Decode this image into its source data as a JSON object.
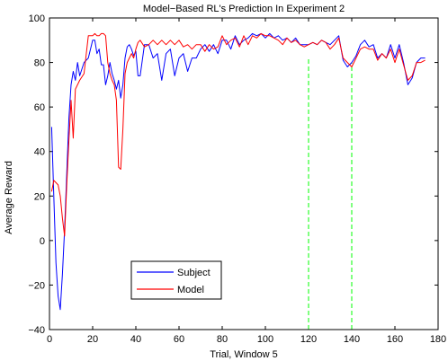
{
  "chart_data": {
    "type": "line",
    "title": "Model−Based RL's Prediction In Experiment 2",
    "xlabel": "Trial, Window 5",
    "ylabel": "Average Reward",
    "xlim": [
      0,
      180
    ],
    "ylim": [
      -40,
      100
    ],
    "xticks": [
      0,
      20,
      40,
      60,
      80,
      100,
      120,
      140,
      160,
      180
    ],
    "yticks": [
      -40,
      -20,
      0,
      20,
      40,
      60,
      80,
      100
    ],
    "xtick_labels": [
      "0",
      "20",
      "40",
      "60",
      "80",
      "100",
      "120",
      "140",
      "160",
      "180"
    ],
    "ytick_labels": [
      "−40",
      "−20",
      "0",
      "20",
      "40",
      "60",
      "80",
      "100"
    ],
    "grid": false,
    "legend_position": "bottom-left",
    "series": [
      {
        "name": "Subject",
        "color": "#0000ff",
        "x": [
          1,
          2,
          3,
          4,
          5,
          6,
          7,
          8,
          9,
          10,
          11,
          12,
          13,
          14,
          16,
          18,
          20,
          21,
          22,
          23,
          24,
          25,
          26,
          27,
          28,
          29,
          30,
          31,
          32,
          33,
          34,
          35,
          36,
          37,
          38,
          39,
          40,
          41,
          42,
          44,
          46,
          48,
          50,
          52,
          54,
          56,
          58,
          60,
          62,
          64,
          66,
          68,
          70,
          72,
          74,
          76,
          78,
          80,
          82,
          84,
          86,
          88,
          90,
          92,
          94,
          96,
          98,
          100,
          102,
          104,
          106,
          108,
          110,
          112,
          114,
          116,
          118,
          120,
          122,
          124,
          126,
          128,
          130,
          132,
          134,
          136,
          138,
          140,
          142,
          144,
          146,
          148,
          150,
          152,
          154,
          156,
          158,
          160,
          162,
          164,
          166,
          168,
          170,
          172,
          174
        ],
        "y": [
          51,
          20,
          -10,
          -25,
          -31,
          -15,
          5,
          30,
          55,
          70,
          76,
          72,
          80,
          74,
          80,
          82,
          90,
          90,
          84,
          86,
          79,
          79,
          70,
          74,
          80,
          75,
          72,
          68,
          72,
          64,
          70,
          82,
          87,
          88,
          86,
          83,
          85,
          74,
          74,
          88,
          88,
          82,
          84,
          72,
          84,
          86,
          74,
          82,
          84,
          76,
          82,
          82,
          86,
          88,
          85,
          88,
          84,
          90,
          90,
          86,
          92,
          88,
          90,
          91,
          93,
          92,
          93,
          91,
          93,
          91,
          92,
          90,
          91,
          89,
          91,
          88,
          88,
          88,
          89,
          88,
          90,
          89,
          88,
          90,
          92,
          81,
          78,
          80,
          83,
          88,
          90,
          87,
          88,
          82,
          84,
          82,
          88,
          82,
          88,
          80,
          70,
          73,
          80,
          82,
          82
        ]
      },
      {
        "name": "Model",
        "color": "#ff0000",
        "x": [
          1,
          2,
          3,
          4,
          5,
          6,
          7,
          8,
          9,
          10,
          11,
          12,
          13,
          14,
          16,
          18,
          20,
          21,
          22,
          23,
          24,
          25,
          26,
          27,
          28,
          29,
          30,
          31,
          32,
          33,
          34,
          35,
          36,
          37,
          38,
          39,
          40,
          41,
          42,
          44,
          46,
          48,
          50,
          52,
          54,
          56,
          58,
          60,
          62,
          64,
          66,
          68,
          70,
          72,
          74,
          76,
          78,
          80,
          82,
          84,
          86,
          88,
          90,
          92,
          94,
          96,
          98,
          100,
          102,
          104,
          106,
          108,
          110,
          112,
          114,
          116,
          118,
          120,
          122,
          124,
          126,
          128,
          130,
          132,
          134,
          136,
          138,
          140,
          142,
          144,
          146,
          148,
          150,
          152,
          154,
          156,
          158,
          160,
          162,
          164,
          166,
          168,
          170,
          172,
          174
        ],
        "y": [
          22,
          27,
          26,
          25,
          20,
          10,
          2,
          25,
          45,
          63,
          46,
          68,
          70,
          72,
          75,
          92,
          92,
          93,
          92,
          92,
          93,
          93,
          92,
          80,
          75,
          72,
          70,
          63,
          33,
          32,
          50,
          75,
          80,
          82,
          84,
          82,
          86,
          89,
          90,
          87,
          88,
          90,
          88,
          90,
          88,
          90,
          88,
          90,
          87,
          88,
          86,
          88,
          88,
          85,
          88,
          86,
          87,
          92,
          88,
          90,
          91,
          87,
          92,
          88,
          92,
          91,
          93,
          92,
          92,
          91,
          90,
          88,
          91,
          89,
          90,
          88,
          87,
          88,
          89,
          88,
          90,
          89,
          86,
          88,
          91,
          82,
          80,
          78,
          82,
          86,
          87,
          86,
          86,
          81,
          84,
          82,
          86,
          80,
          86,
          79,
          72,
          74,
          80,
          80,
          81
        ]
      }
    ],
    "vertical_markers": [
      {
        "x": 120,
        "color": "#00ff00",
        "style": "dashed",
        "y_top": 82
      },
      {
        "x": 140,
        "color": "#00ff00",
        "style": "dashed",
        "y_top": 80
      }
    ]
  }
}
